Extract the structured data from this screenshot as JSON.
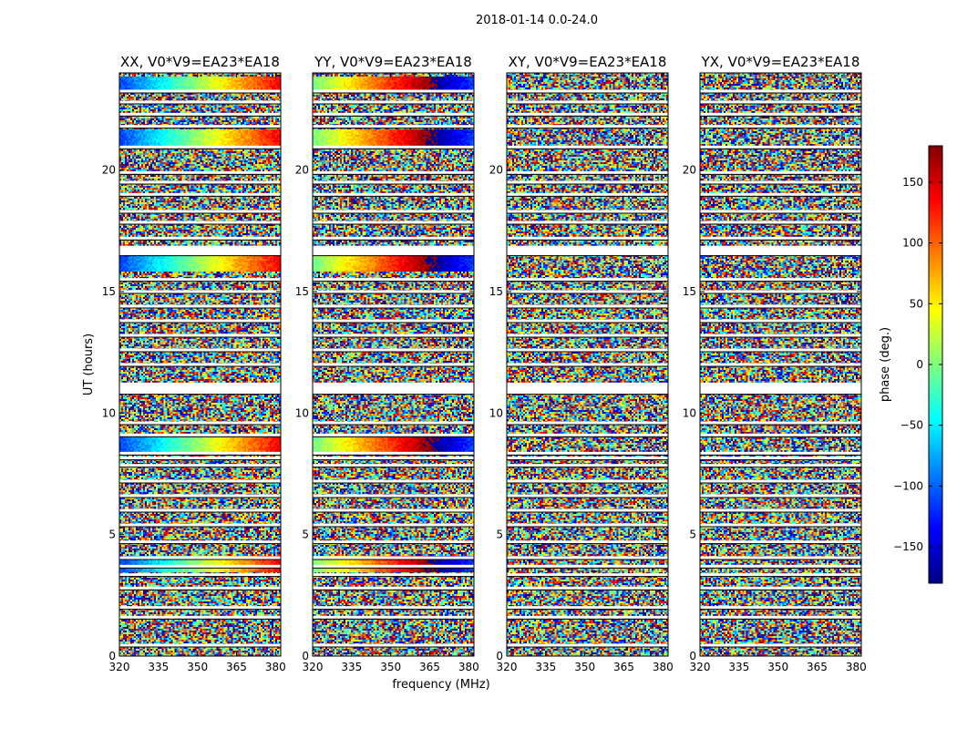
{
  "figure": {
    "suptitle": "2018-01-14 0.0-24.0"
  },
  "chart_data": {
    "type": "heatmap",
    "title": "2018-01-14 0.0-24.0",
    "xlabel": "frequency (MHz)",
    "ylabel": "UT (hours)",
    "xlim": [
      320,
      382
    ],
    "ylim": [
      0,
      24
    ],
    "xticks": [
      320,
      335,
      350,
      365,
      380
    ],
    "yticks": [
      0,
      5,
      10,
      15,
      20
    ],
    "panels": [
      {
        "id": "xx",
        "title": "XX, V0*V9=EA23*EA18"
      },
      {
        "id": "yy",
        "title": "YY, V0*V9=EA23*EA18"
      },
      {
        "id": "xy",
        "title": "XY, V0*V9=EA23*EA18"
      },
      {
        "id": "yx",
        "title": "YX, V0*V9=EA23*EA18"
      }
    ],
    "colorbar": {
      "label": "phase (deg.)",
      "range": [
        -180,
        180
      ],
      "ticks": [
        150,
        100,
        50,
        0,
        -50,
        -100,
        -150
      ],
      "colormap": "jet"
    },
    "flagged_hours": [
      0.45,
      1.6,
      2.0,
      2.8,
      3.35,
      3.7,
      4.05,
      4.7,
      5.4,
      6.0,
      6.6,
      7.2,
      7.85,
      8.15,
      8.35,
      9.1,
      9.6,
      10.85,
      11.05,
      11.2,
      12.0,
      12.6,
      13.2,
      13.8,
      14.4,
      15.0,
      15.5,
      16.55,
      16.75,
      17.2,
      17.85,
      18.3,
      19.0,
      19.5,
      19.9,
      20.95,
      21.8,
      22.3,
      22.8,
      23.25
    ],
    "wide_flagged_hours": [
      11.05,
      16.7
    ],
    "coherent_bands": [
      {
        "hour": 23.5,
        "panels": [
          "xx",
          "yy"
        ]
      },
      {
        "hour": 21.3,
        "panels": [
          "xx",
          "yy"
        ]
      },
      {
        "hour": 16.2,
        "panels": [
          "xx",
          "yy"
        ]
      },
      {
        "hour": 8.7,
        "panels": [
          "xx",
          "yy"
        ]
      },
      {
        "hour": 3.8,
        "panels": [
          "xx",
          "yy"
        ]
      }
    ],
    "colors": {
      "jet": [
        "#00007f",
        "#0000ff",
        "#007fff",
        "#00ffff",
        "#7fff7f",
        "#ffff00",
        "#ff7f00",
        "#ff0000",
        "#7f0000"
      ]
    }
  }
}
